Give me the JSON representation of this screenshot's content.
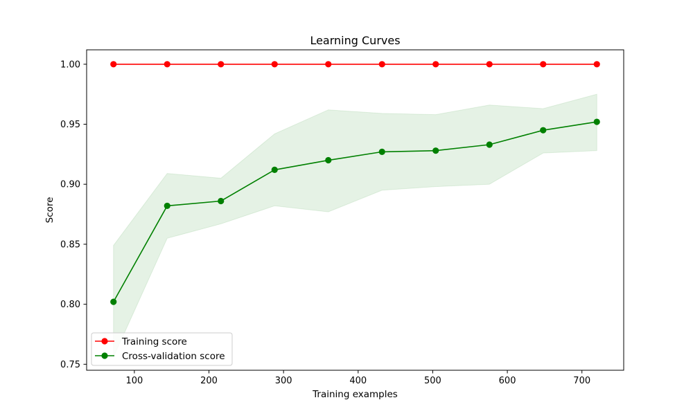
{
  "chart_data": {
    "type": "line",
    "title": "Learning Curves",
    "xlabel": "Training examples",
    "ylabel": "Score",
    "xlim": [
      36,
      756
    ],
    "ylim": [
      0.745,
      1.012
    ],
    "xticks": [
      100,
      200,
      300,
      400,
      500,
      600,
      700
    ],
    "xtick_labels": [
      "100",
      "200",
      "300",
      "400",
      "500",
      "600",
      "700"
    ],
    "yticks": [
      0.75,
      0.8,
      0.85,
      0.9,
      0.95,
      1.0
    ],
    "ytick_labels": [
      "0.75",
      "0.80",
      "0.85",
      "0.90",
      "0.95",
      "1.00"
    ],
    "grid": false,
    "legend_position": "lower-left",
    "x": [
      72,
      144,
      216,
      288,
      360,
      432,
      504,
      576,
      648,
      720
    ],
    "series": [
      {
        "name": "Training score",
        "color": "#ff0000",
        "marker": "circle",
        "values": [
          1.0,
          1.0,
          1.0,
          1.0,
          1.0,
          1.0,
          1.0,
          1.0,
          1.0,
          1.0
        ],
        "band_upper": [
          1.0,
          1.0,
          1.0,
          1.0,
          1.0,
          1.0,
          1.0,
          1.0,
          1.0,
          1.0
        ],
        "band_lower": [
          1.0,
          1.0,
          1.0,
          1.0,
          1.0,
          1.0,
          1.0,
          1.0,
          1.0,
          1.0
        ],
        "band_color": "#ff0000"
      },
      {
        "name": "Cross-validation score",
        "color": "#008000",
        "marker": "circle",
        "values": [
          0.802,
          0.882,
          0.886,
          0.912,
          0.92,
          0.927,
          0.928,
          0.933,
          0.945,
          0.952
        ],
        "band_upper": [
          0.849,
          0.909,
          0.905,
          0.942,
          0.962,
          0.959,
          0.958,
          0.966,
          0.963,
          0.975
        ],
        "band_lower": [
          0.756,
          0.855,
          0.867,
          0.882,
          0.877,
          0.895,
          0.898,
          0.9,
          0.926,
          0.928
        ],
        "band_color": "#008000"
      }
    ]
  }
}
